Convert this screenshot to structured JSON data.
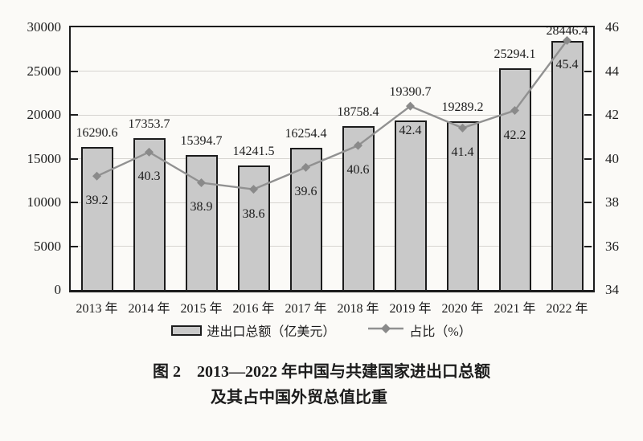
{
  "chart_data": {
    "type": "bar",
    "subtype": "bar+line dual axis",
    "categories": [
      "2013 年",
      "2014 年",
      "2015 年",
      "2016 年",
      "2017 年",
      "2018 年",
      "2019 年",
      "2020 年",
      "2021 年",
      "2022 年"
    ],
    "series": [
      {
        "name": "进出口总额（亿美元）",
        "type": "bar",
        "axis": "left",
        "values": [
          16290.6,
          17353.7,
          15394.7,
          14241.5,
          16254.4,
          18758.4,
          19390.7,
          19289.2,
          25294.1,
          28446.4
        ]
      },
      {
        "name": "占比（%）",
        "type": "line",
        "axis": "right",
        "values": [
          39.2,
          40.3,
          38.9,
          38.6,
          39.6,
          40.6,
          42.4,
          41.4,
          42.2,
          45.4
        ]
      }
    ],
    "left_axis": {
      "min": 0,
      "max": 30000,
      "ticks": [
        0,
        5000,
        10000,
        15000,
        20000,
        25000,
        30000
      ]
    },
    "right_axis": {
      "min": 34,
      "max": 46,
      "ticks": [
        34,
        36,
        38,
        40,
        42,
        44,
        46
      ]
    },
    "grid": "horizontal",
    "legend_position": "bottom",
    "title": "图 2　2013—2022 年中国与共建国家进出口总额及其占中国外贸总值比重"
  },
  "legend": {
    "bar_label": "进出口总额（亿美元）",
    "line_label": "占比（%）"
  },
  "caption": {
    "line1": "图 2　2013—2022 年中国与共建国家进出口总额",
    "line2": "及其占中国外贸总值比重"
  },
  "colors": {
    "background": "#fbfaf7",
    "bar_fill": "#c9c9c9",
    "ink": "#1c1c1c",
    "line": "#919191",
    "marker": "#8a8a8a",
    "grid": "#d6d4d0"
  }
}
